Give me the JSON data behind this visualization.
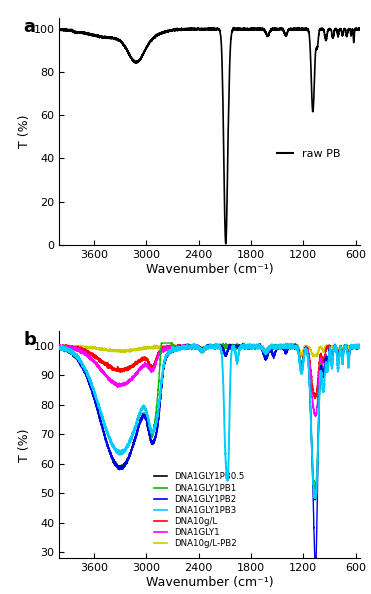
{
  "title_a": "a",
  "title_b": "b",
  "xlabel": "Wavenumber (cm⁻¹)",
  "ylabel": "T (%)",
  "xlim": [
    4000,
    550
  ],
  "ylim_a": [
    0,
    105
  ],
  "ylim_b": [
    28,
    105
  ],
  "yticks_a": [
    0,
    20,
    40,
    60,
    80,
    100
  ],
  "yticks_b": [
    30,
    40,
    50,
    60,
    70,
    80,
    90,
    100
  ],
  "xticks": [
    3600,
    3000,
    2400,
    1800,
    1200,
    600
  ],
  "legend_labels": [
    "DNA1GLY1PB0.5",
    "DNA1GLY1PB1",
    "DNA1GLY1PB2",
    "DNA1GLY1PB3",
    "DNA10g/L",
    "DNA1GLY1",
    "DNA10g/L-PB2"
  ],
  "legend_colors": [
    "#000000",
    "#00bb00",
    "#0000ee",
    "#00ccff",
    "#ff0000",
    "#ff00ff",
    "#cccc00"
  ],
  "raw_pb_color": "#000000",
  "background_color": "#ffffff"
}
